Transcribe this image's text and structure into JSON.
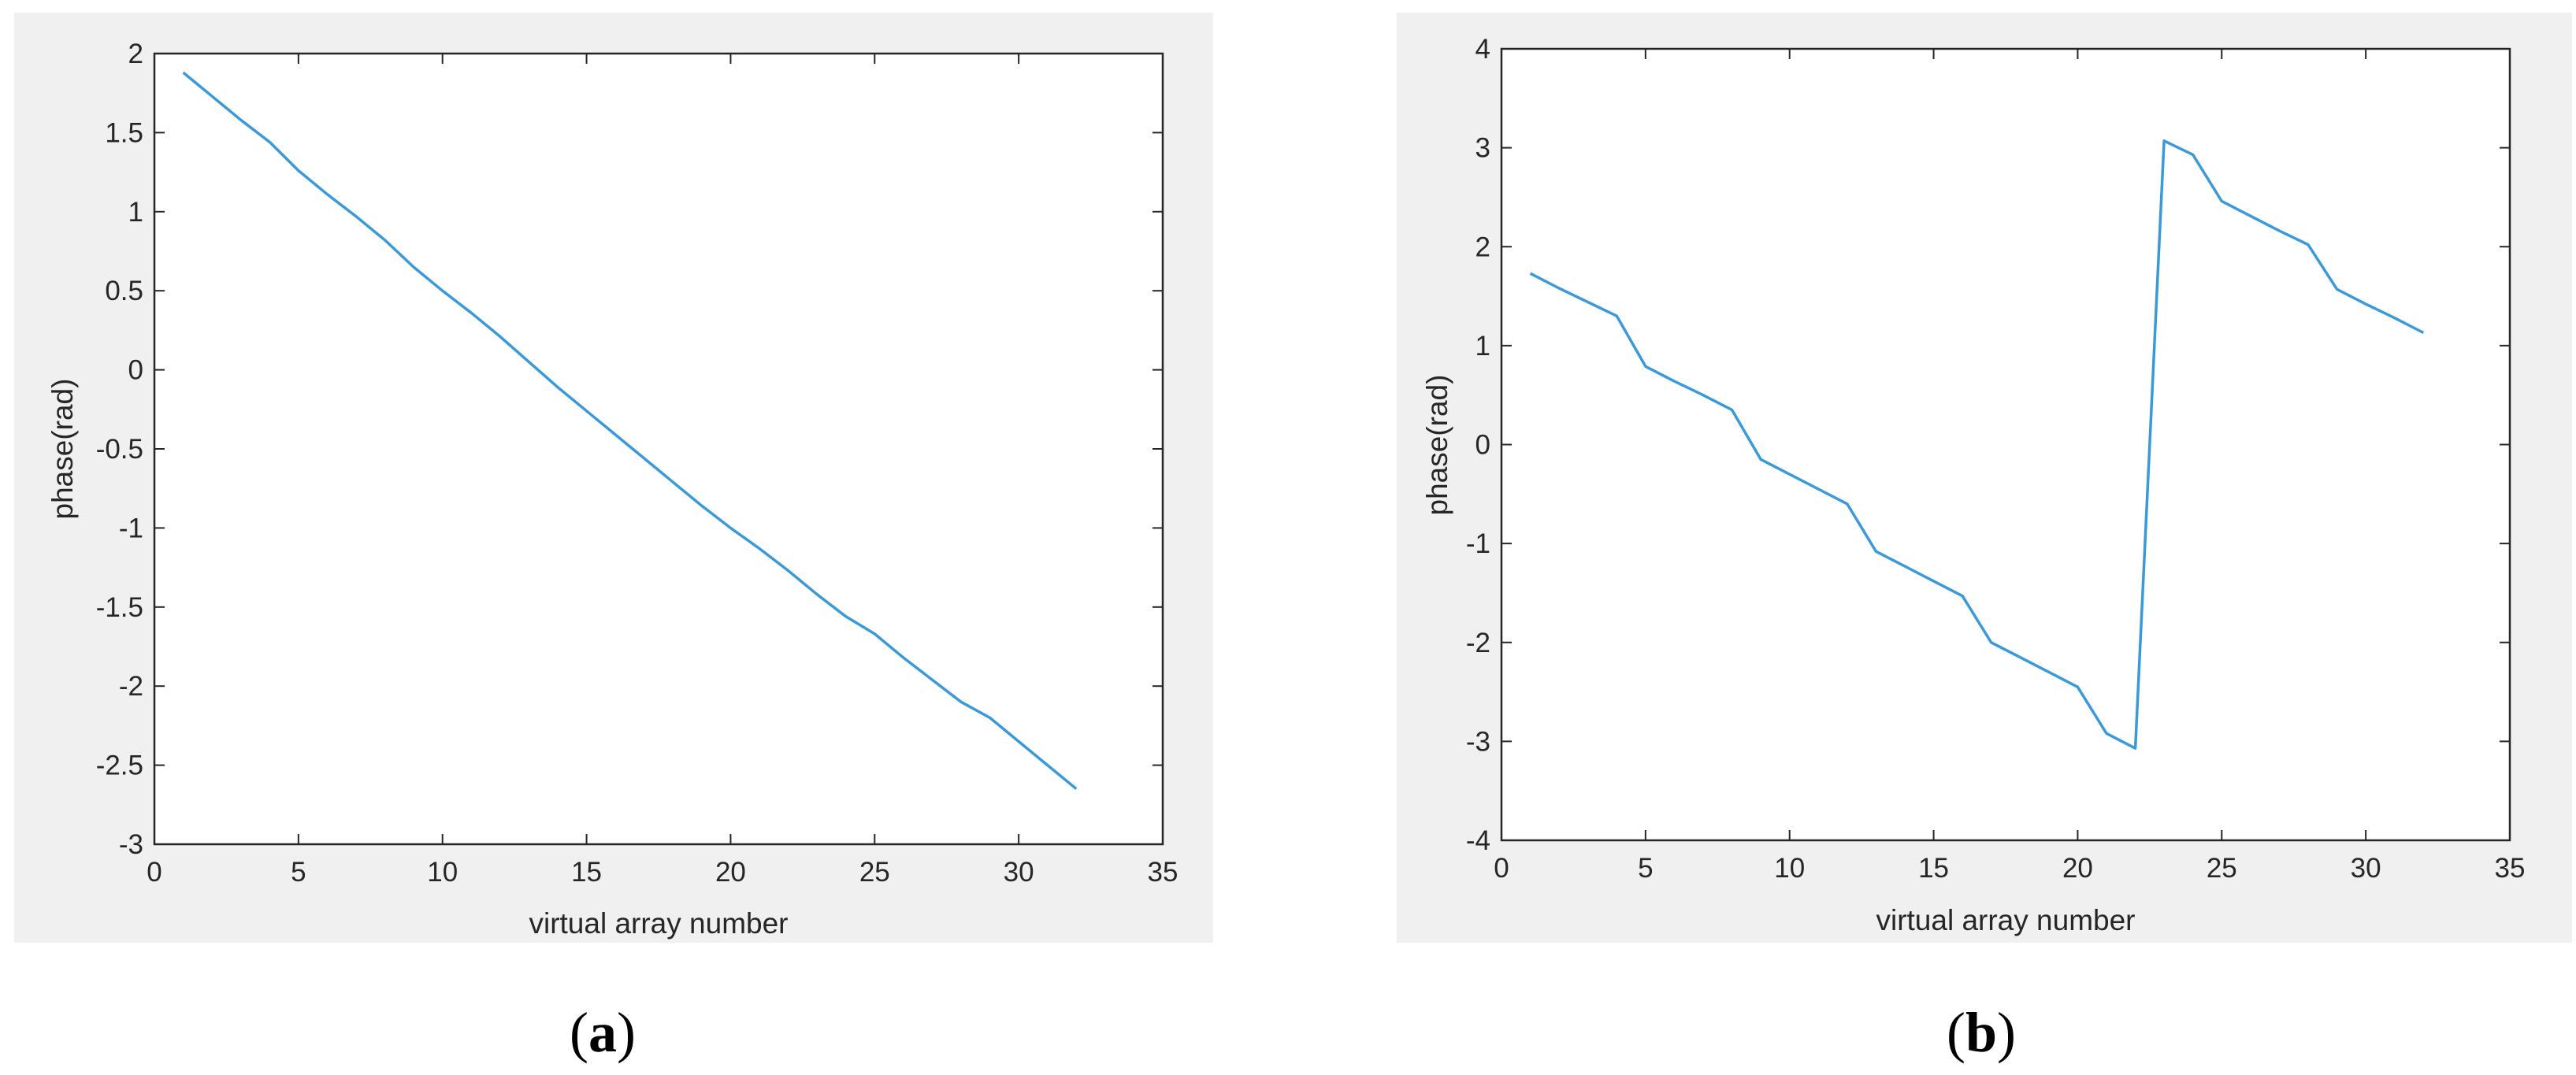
{
  "colors": {
    "figure_background": "#f0f0f0",
    "axes_background": "#ffffff",
    "axes_edge": "#262626",
    "line": "#3a9ad9"
  },
  "chart_data": [
    {
      "type": "line",
      "panel_label": {
        "open": "(",
        "letter": "a",
        "close": ")"
      },
      "xlabel": "virtual array number",
      "ylabel": "phase(rad)",
      "xlim": [
        0,
        35
      ],
      "ylim": [
        -3,
        2
      ],
      "xticks": [
        0,
        5,
        10,
        15,
        20,
        25,
        30,
        35
      ],
      "yticks": [
        -3,
        -2.5,
        -2,
        -1.5,
        -1,
        -0.5,
        0,
        0.5,
        1,
        1.5,
        2
      ],
      "xtick_labels": [
        "0",
        "5",
        "10",
        "15",
        "20",
        "25",
        "30",
        "35"
      ],
      "ytick_labels": [
        "-3",
        "-2.5",
        "-2",
        "-1.5",
        "-1",
        "-0.5",
        "0",
        "0.5",
        "1",
        "1.5",
        "2"
      ],
      "grid": false,
      "series": [
        {
          "x": [
            1,
            2,
            3,
            4,
            5,
            6,
            7,
            8,
            9,
            10,
            11,
            12,
            13,
            14,
            15,
            16,
            17,
            18,
            19,
            20,
            21,
            22,
            23,
            24,
            25,
            26,
            27,
            28,
            29,
            30,
            31,
            32
          ],
          "y": [
            1.88,
            1.73,
            1.58,
            1.44,
            1.26,
            1.11,
            0.97,
            0.82,
            0.65,
            0.5,
            0.36,
            0.21,
            0.05,
            -0.11,
            -0.26,
            -0.41,
            -0.56,
            -0.71,
            -0.86,
            -1.0,
            -1.13,
            -1.27,
            -1.42,
            -1.56,
            -1.67,
            -1.82,
            -1.96,
            -2.1,
            -2.2,
            -2.35,
            -2.5,
            -2.65
          ]
        }
      ]
    },
    {
      "type": "line",
      "panel_label": {
        "open": "(",
        "letter": "b",
        "close": ")"
      },
      "xlabel": "virtual array number",
      "ylabel": "phase(rad)",
      "xlim": [
        0,
        35
      ],
      "ylim": [
        -4,
        4
      ],
      "xticks": [
        0,
        5,
        10,
        15,
        20,
        25,
        30,
        35
      ],
      "yticks": [
        -4,
        -3,
        -2,
        -1,
        0,
        1,
        2,
        3,
        4
      ],
      "xtick_labels": [
        "0",
        "5",
        "10",
        "15",
        "20",
        "25",
        "30",
        "35"
      ],
      "ytick_labels": [
        "-4",
        "-3",
        "-2",
        "-1",
        "0",
        "1",
        "2",
        "3",
        "4"
      ],
      "grid": false,
      "series": [
        {
          "x": [
            1,
            2,
            3,
            4,
            5,
            6,
            7,
            8,
            9,
            10,
            11,
            12,
            13,
            14,
            15,
            16,
            17,
            18,
            19,
            20,
            21,
            22,
            23,
            24,
            25,
            26,
            27,
            28,
            29,
            30,
            31,
            32
          ],
          "y": [
            1.73,
            1.58,
            1.44,
            1.3,
            0.79,
            0.64,
            0.5,
            0.35,
            -0.15,
            -0.3,
            -0.45,
            -0.6,
            -1.08,
            -1.23,
            -1.38,
            -1.53,
            -2.0,
            -2.15,
            -2.3,
            -2.45,
            -2.92,
            -3.07,
            3.07,
            2.93,
            2.46,
            2.31,
            2.16,
            2.02,
            1.57,
            1.42,
            1.28,
            1.13
          ]
        }
      ]
    }
  ]
}
